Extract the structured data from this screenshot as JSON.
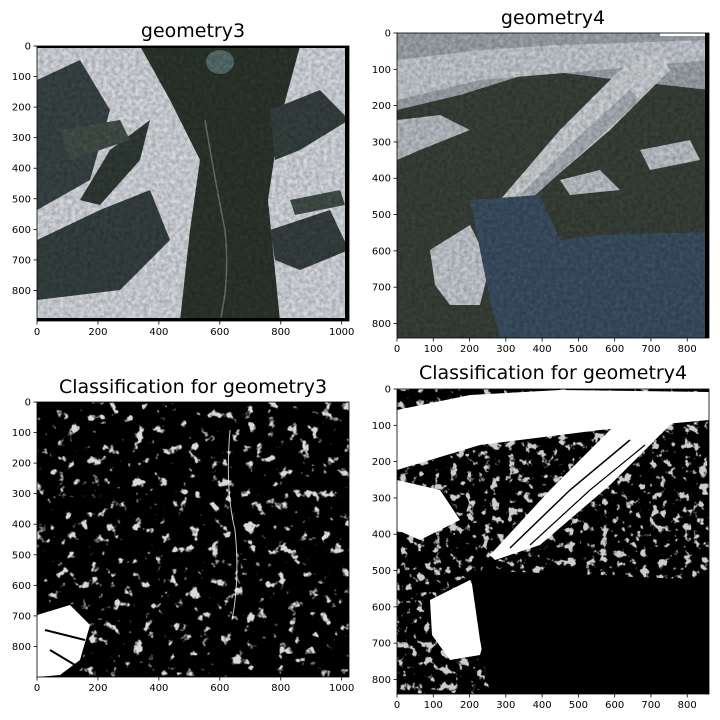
{
  "chart_data": [
    {
      "type": "heatmap",
      "title": "geometry3",
      "content": "RGB satellite image: broad dark forested valley running top to bottom with a lake at the top, snow-covered mountain ridges on both sides",
      "xlim": [
        0,
        1024
      ],
      "ylim": [
        900,
        0
      ],
      "xticks": [
        0,
        200,
        400,
        600,
        800,
        1000
      ],
      "yticks": [
        0,
        100,
        200,
        300,
        400,
        500,
        600,
        700,
        800
      ],
      "palette": {
        "snow": "#e8edf3",
        "rock": "#4c5a58",
        "forest": "#2e3a30",
        "water": "#5d7575"
      }
    },
    {
      "type": "heatmap",
      "title": "geometry4",
      "content": "RGB satellite image: large glacier flowing from upper right to center into a blue fjord, snow patches on dark mountains",
      "xlim": [
        0,
        860
      ],
      "ylim": [
        840,
        0
      ],
      "xticks": [
        0,
        100,
        200,
        300,
        400,
        500,
        600,
        700,
        800
      ],
      "yticks": [
        0,
        100,
        200,
        300,
        400,
        500,
        600,
        700,
        800
      ],
      "palette": {
        "ice": "#d7dde3",
        "rock": "#3c463e",
        "water": "#3f566b"
      }
    },
    {
      "type": "heatmap",
      "title": "Classification for geometry3",
      "content": "Binary snow/ice classification mask (white = snow/ice, black = other) of geometry3",
      "xlim": [
        0,
        1024
      ],
      "ylim": [
        900,
        0
      ],
      "xticks": [
        0,
        200,
        400,
        600,
        800,
        1000
      ],
      "yticks": [
        0,
        100,
        200,
        300,
        400,
        500,
        600,
        700,
        800
      ],
      "palette": {
        "class1": "#ffffff",
        "class0": "#000000"
      }
    },
    {
      "type": "heatmap",
      "title": "Classification for geometry4",
      "content": "Binary snow/ice classification mask (white = snow/ice, black = other) of geometry4",
      "xlim": [
        0,
        860
      ],
      "ylim": [
        840,
        0
      ],
      "xticks": [
        0,
        100,
        200,
        300,
        400,
        500,
        600,
        700,
        800
      ],
      "yticks": [
        0,
        100,
        200,
        300,
        400,
        500,
        600,
        700,
        800
      ],
      "palette": {
        "class1": "#ffffff",
        "class0": "#000000"
      }
    }
  ]
}
